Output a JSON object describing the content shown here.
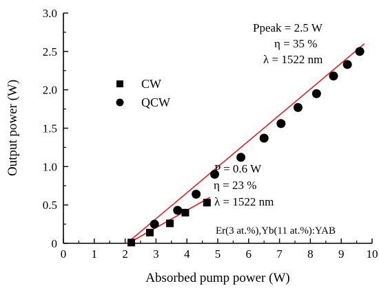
{
  "chart_data": {
    "type": "scatter",
    "xlabel": "Absorbed pump power (W)",
    "ylabel": "Output power (W)",
    "xlim": [
      0,
      10
    ],
    "ylim": [
      0,
      3.0
    ],
    "x_ticks": [
      "0",
      "1",
      "2",
      "3",
      "4",
      "5",
      "6",
      "7",
      "8",
      "9",
      "10"
    ],
    "y_ticks": [
      "0",
      "0.5",
      "1.0",
      "1.5",
      "2.0",
      "2.5",
      "3.0"
    ],
    "x_tick_values": [
      0,
      1,
      2,
      3,
      4,
      5,
      6,
      7,
      8,
      9,
      10
    ],
    "y_tick_values": [
      0,
      0.5,
      1.0,
      1.5,
      2.0,
      2.5,
      3.0
    ],
    "legend_position": "left",
    "grid": false,
    "series": [
      {
        "name": "CW",
        "marker": "square",
        "color": "#000000",
        "points": [
          {
            "x": 2.2,
            "y": 0.01
          },
          {
            "x": 2.8,
            "y": 0.14
          },
          {
            "x": 3.45,
            "y": 0.26
          },
          {
            "x": 3.95,
            "y": 0.4
          },
          {
            "x": 4.65,
            "y": 0.53
          }
        ]
      },
      {
        "name": "QCW",
        "marker": "circle",
        "color": "#000000",
        "points": [
          {
            "x": 2.95,
            "y": 0.25
          },
          {
            "x": 3.7,
            "y": 0.43
          },
          {
            "x": 4.3,
            "y": 0.64
          },
          {
            "x": 4.9,
            "y": 0.9
          },
          {
            "x": 5.75,
            "y": 1.12
          },
          {
            "x": 6.5,
            "y": 1.37
          },
          {
            "x": 7.05,
            "y": 1.56
          },
          {
            "x": 7.6,
            "y": 1.77
          },
          {
            "x": 8.2,
            "y": 1.95
          },
          {
            "x": 8.75,
            "y": 2.18
          },
          {
            "x": 9.2,
            "y": 2.33
          },
          {
            "x": 9.6,
            "y": 2.5
          }
        ]
      }
    ],
    "fit_lines": [
      {
        "series": "QCW",
        "color": "#e02020",
        "x": [
          2.05,
          9.75
        ],
        "y": [
          0,
          2.6
        ]
      },
      {
        "series": "CW",
        "color": "#e02020",
        "x": [
          2.1,
          4.75
        ],
        "y": [
          0,
          0.6
        ]
      }
    ],
    "annotations": {
      "qcw": [
        "Ppeak = 2.5 W",
        "η = 35 %",
        "λ = 1522 nm"
      ],
      "cw": [
        "P = 0.6 W",
        "η = 23 %",
        "λ = 1522 nm"
      ],
      "sample": "Er(3 at.%),Yb(11 at.%):YAB"
    }
  }
}
